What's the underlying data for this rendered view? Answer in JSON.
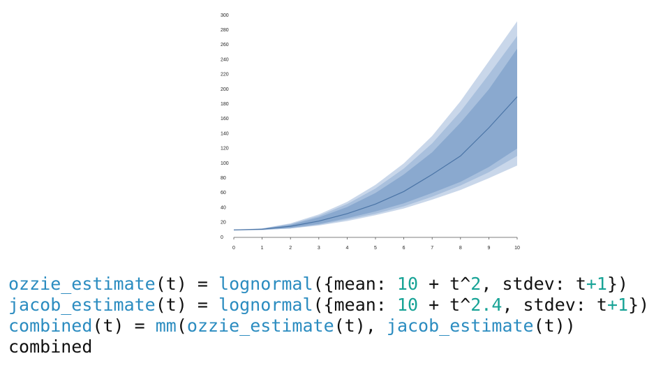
{
  "chart_data": {
    "type": "fan",
    "x": [
      0,
      1,
      2,
      3,
      4,
      5,
      6,
      7,
      8,
      9,
      10
    ],
    "xlim": [
      0,
      10
    ],
    "xticks": [
      0,
      1,
      2,
      3,
      4,
      5,
      6,
      7,
      8,
      9,
      10
    ],
    "ylim": [
      0,
      300
    ],
    "yticks": [
      0,
      20,
      40,
      60,
      80,
      100,
      120,
      140,
      160,
      180,
      200,
      220,
      240,
      260,
      280,
      300
    ],
    "line": {
      "color": "#4a74a6",
      "values": [
        10,
        11,
        15,
        22,
        32,
        45,
        62,
        85,
        110,
        148,
        190
      ]
    },
    "bands": [
      {
        "color": "#c9d7ea",
        "lower": [
          9.5,
          10,
          12,
          16,
          22,
          30,
          39,
          51,
          64,
          80,
          97
        ],
        "upper": [
          10.5,
          12,
          19,
          31,
          48,
          71,
          100,
          137,
          184,
          238,
          292
        ]
      },
      {
        "color": "#a9c0dd",
        "lower": [
          10,
          10,
          12,
          17,
          24,
          32,
          42,
          55,
          70,
          88,
          110
        ],
        "upper": [
          10,
          12,
          18,
          29,
          45,
          66,
          93,
          127,
          170,
          220,
          272
        ]
      },
      {
        "color": "#8aa9cf",
        "lower": [
          10,
          10.5,
          13,
          18,
          26,
          35,
          46,
          60,
          75,
          95,
          120
        ],
        "upper": [
          10,
          11.5,
          17,
          27,
          41,
          60,
          85,
          115,
          155,
          200,
          255
        ]
      }
    ]
  },
  "code": {
    "lines": [
      [
        {
          "text": "ozzie_estimate",
          "color": "#2b8cc0"
        },
        {
          "text": "(t) = ",
          "color": "#111"
        },
        {
          "text": "lognormal",
          "color": "#2b8cc0"
        },
        {
          "text": "({mean: ",
          "color": "#111"
        },
        {
          "text": "10",
          "color": "#17a396"
        },
        {
          "text": " + t^",
          "color": "#111"
        },
        {
          "text": "2",
          "color": "#17a396"
        },
        {
          "text": ", stdev: t",
          "color": "#111"
        },
        {
          "text": "+1",
          "color": "#17a396"
        },
        {
          "text": "})",
          "color": "#111"
        }
      ],
      [
        {
          "text": "jacob_estimate",
          "color": "#2b8cc0"
        },
        {
          "text": "(t) = ",
          "color": "#111"
        },
        {
          "text": "lognormal",
          "color": "#2b8cc0"
        },
        {
          "text": "({mean: ",
          "color": "#111"
        },
        {
          "text": "10",
          "color": "#17a396"
        },
        {
          "text": " + t^",
          "color": "#111"
        },
        {
          "text": "2.4",
          "color": "#17a396"
        },
        {
          "text": ", stdev: t",
          "color": "#111"
        },
        {
          "text": "+1",
          "color": "#17a396"
        },
        {
          "text": "})",
          "color": "#111"
        }
      ],
      [
        {
          "text": "combined",
          "color": "#2b8cc0"
        },
        {
          "text": "(t) = ",
          "color": "#111"
        },
        {
          "text": "mm",
          "color": "#2b8cc0"
        },
        {
          "text": "(",
          "color": "#111"
        },
        {
          "text": "ozzie_estimate",
          "color": "#2b8cc0"
        },
        {
          "text": "(t), ",
          "color": "#111"
        },
        {
          "text": "jacob_estimate",
          "color": "#2b8cc0"
        },
        {
          "text": "(t))",
          "color": "#111"
        }
      ],
      [
        {
          "text": "combined",
          "color": "#111"
        }
      ]
    ]
  }
}
